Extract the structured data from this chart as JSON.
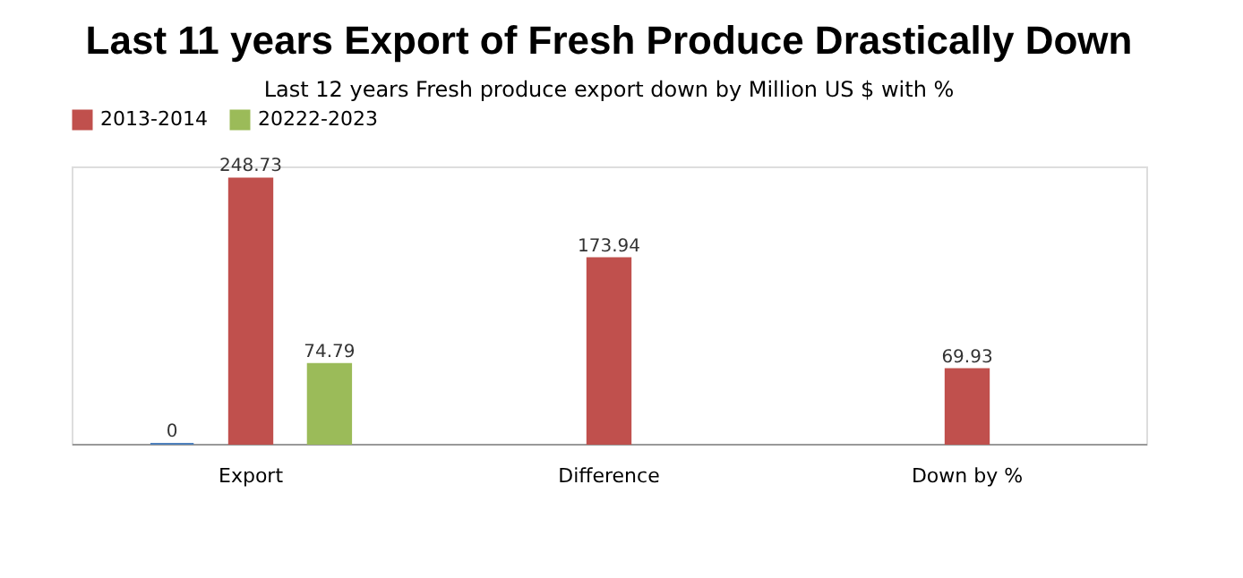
{
  "chart_data": {
    "type": "bar",
    "title": "Last 11 years Export of  Fresh Produce Drastically Down",
    "subtitle": "Last 12 years Fresh produce export  down by Million US $ with %",
    "categories": [
      "Export",
      "Difference",
      "Down by %"
    ],
    "series": [
      {
        "color": "#4f81bd",
        "values": [
          0,
          null,
          null
        ]
      },
      {
        "name": "2013-2014",
        "color": "#c0504d",
        "values": [
          248.73,
          173.94,
          69.93
        ]
      },
      {
        "name": "20222-2023",
        "color": "#9bbb59",
        "values": [
          74.79,
          null,
          null
        ]
      }
    ],
    "data_labels": true,
    "legend": "top",
    "grid": false,
    "tick_labels": "x"
  }
}
